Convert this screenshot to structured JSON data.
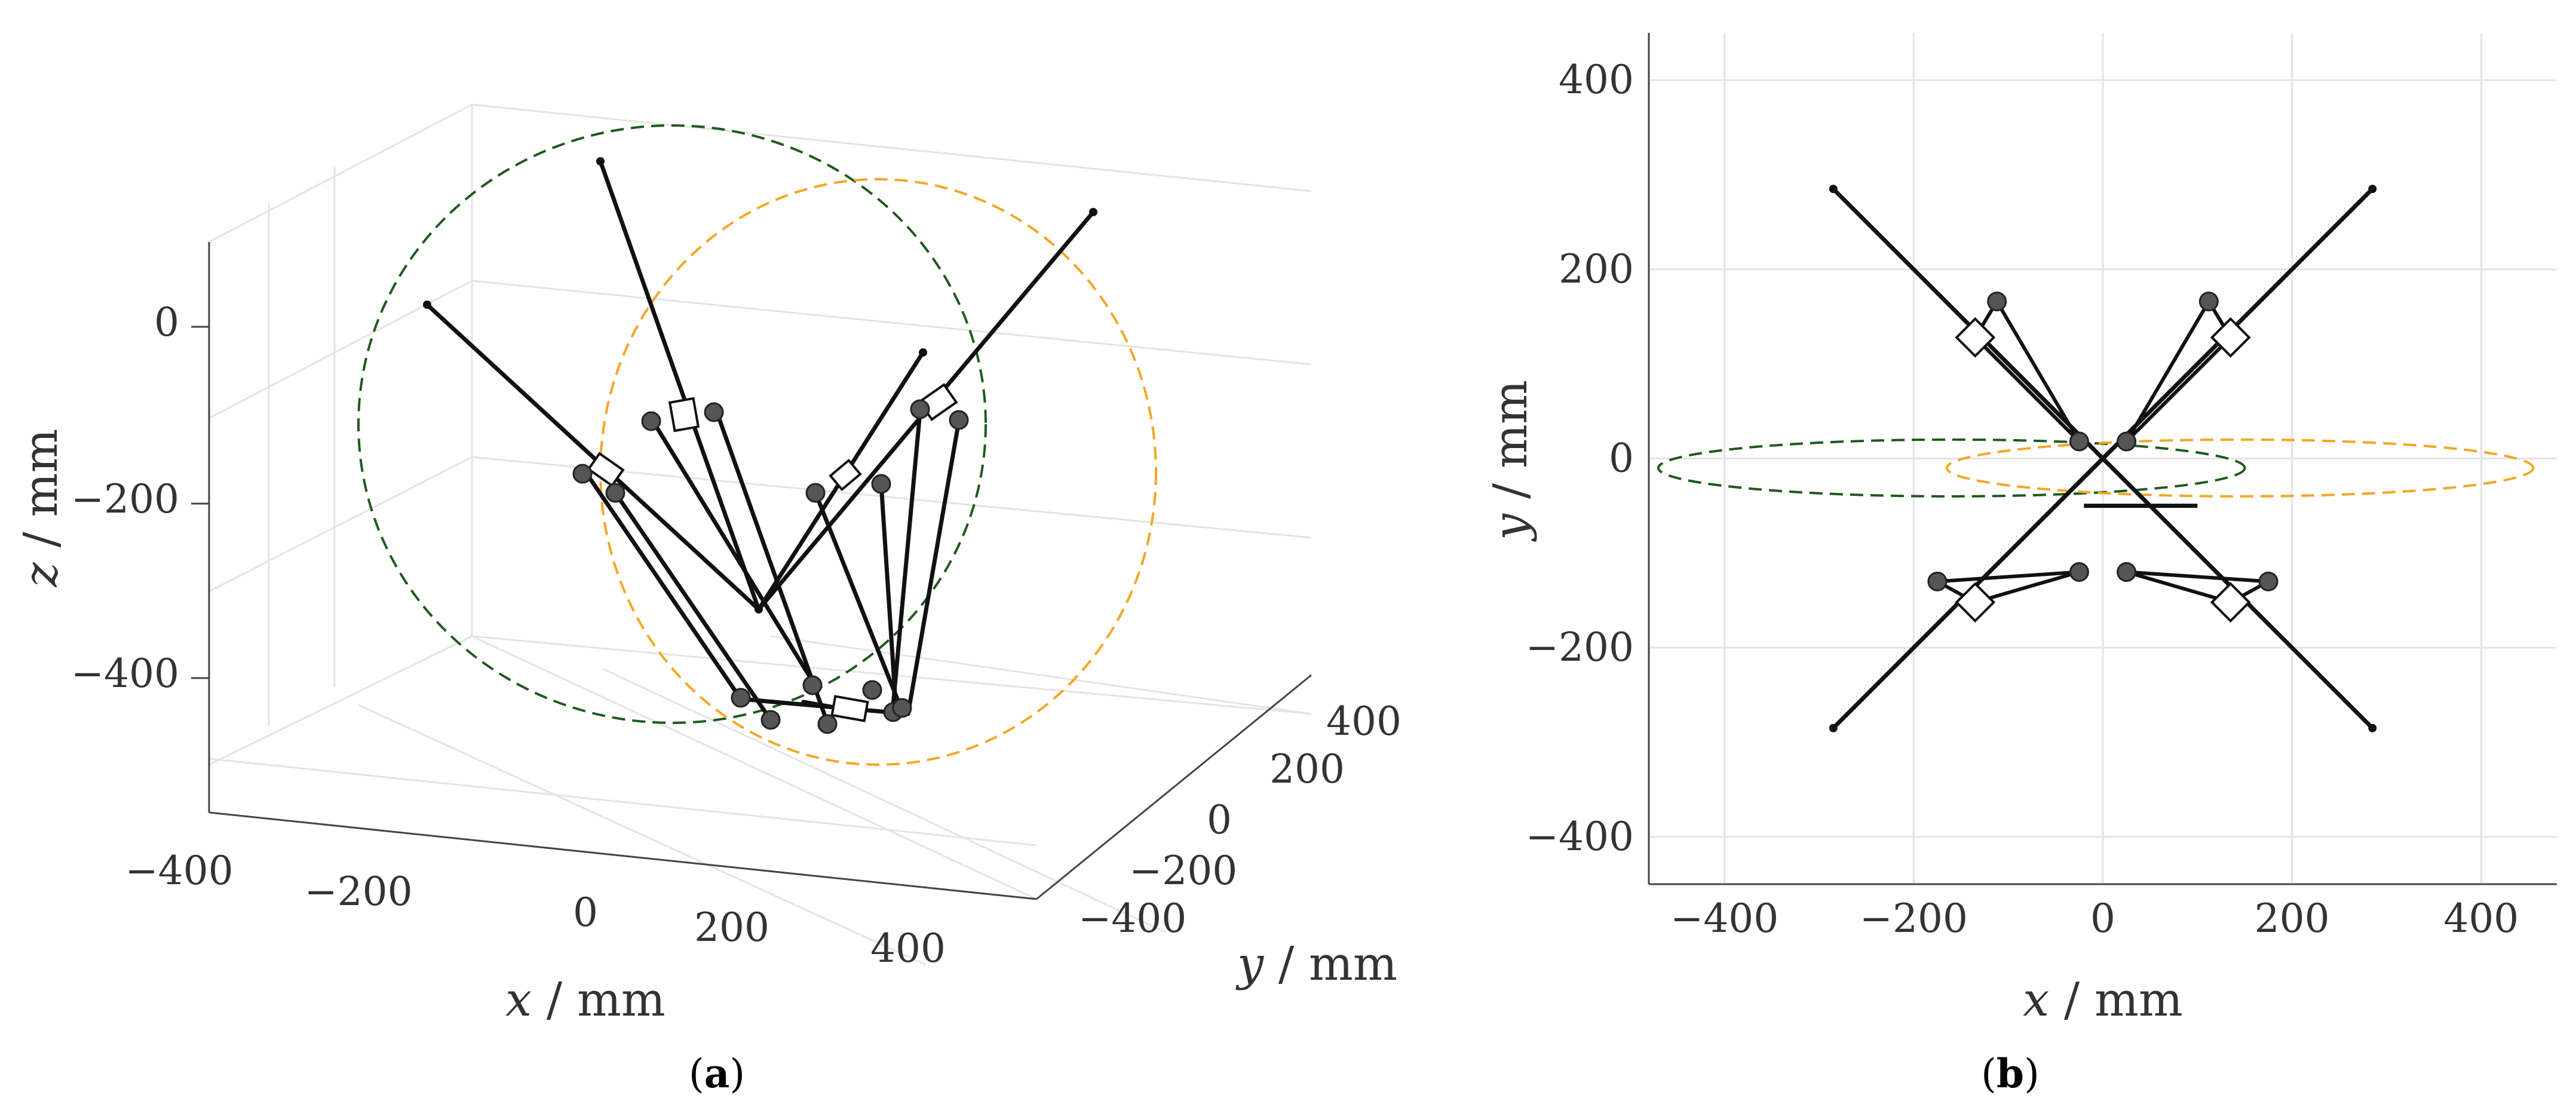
{
  "colors": {
    "link": "#111111",
    "ellipse_1": "#1e5a1e",
    "ellipse_2": "#f5a623",
    "grid": "#e4e4e4",
    "axis": "#444444",
    "joint": "#555555"
  },
  "chart_data": [
    {
      "panel": "a",
      "type": "3d-line",
      "caption_label": "a",
      "xlabel": {
        "var": "x",
        "unit": " / mm"
      },
      "ylabel": {
        "var": "y",
        "unit": " / mm"
      },
      "zlabel": {
        "var": "z",
        "unit": " / mm"
      },
      "xticks": [
        "−400",
        "−200",
        "0",
        "200",
        "400"
      ],
      "yticks": [
        "−400",
        "−200",
        "0",
        "200",
        "400"
      ],
      "zticks": [
        "−400",
        "−200",
        "0"
      ],
      "xlim": [
        -450,
        450
      ],
      "ylim": [
        -450,
        450
      ],
      "zlim": [
        -550,
        100
      ],
      "grid": true
    },
    {
      "panel": "b",
      "type": "line",
      "caption_label": "b",
      "xlabel": {
        "var": "x",
        "unit": " / mm"
      },
      "ylabel": {
        "var": "y",
        "unit": " / mm"
      },
      "xticks": [
        -400,
        -200,
        0,
        200,
        400
      ],
      "yticks": [
        -400,
        -200,
        0,
        200,
        400
      ],
      "xtick_labels": [
        "−400",
        "−200",
        "0",
        "200",
        "400"
      ],
      "ytick_labels": [
        "−400",
        "−200",
        "0",
        "200",
        "400"
      ],
      "xlim": [
        -480,
        480
      ],
      "ylim": [
        -450,
        450
      ],
      "grid": true,
      "arms": [
        [
          [
            -285,
            285
          ],
          [
            -135,
            128
          ],
          [
            -112,
            166
          ],
          [
            -25,
            18
          ]
        ],
        [
          [
            285,
            285
          ],
          [
            135,
            128
          ],
          [
            112,
            166
          ],
          [
            25,
            18
          ]
        ],
        [
          [
            -285,
            -285
          ],
          [
            -135,
            -152
          ],
          [
            -175,
            -130
          ],
          [
            -25,
            -120
          ]
        ],
        [
          [
            285,
            -285
          ],
          [
            135,
            -152
          ],
          [
            175,
            -130
          ],
          [
            25,
            -120
          ]
        ]
      ],
      "ellipses": [
        {
          "color_key": "ellipse_1",
          "center": [
            -160,
            -10
          ],
          "radii": [
            310,
            30
          ]
        },
        {
          "color_key": "ellipse_2",
          "center": [
            145,
            -10
          ],
          "radii": [
            310,
            30
          ]
        }
      ]
    }
  ]
}
